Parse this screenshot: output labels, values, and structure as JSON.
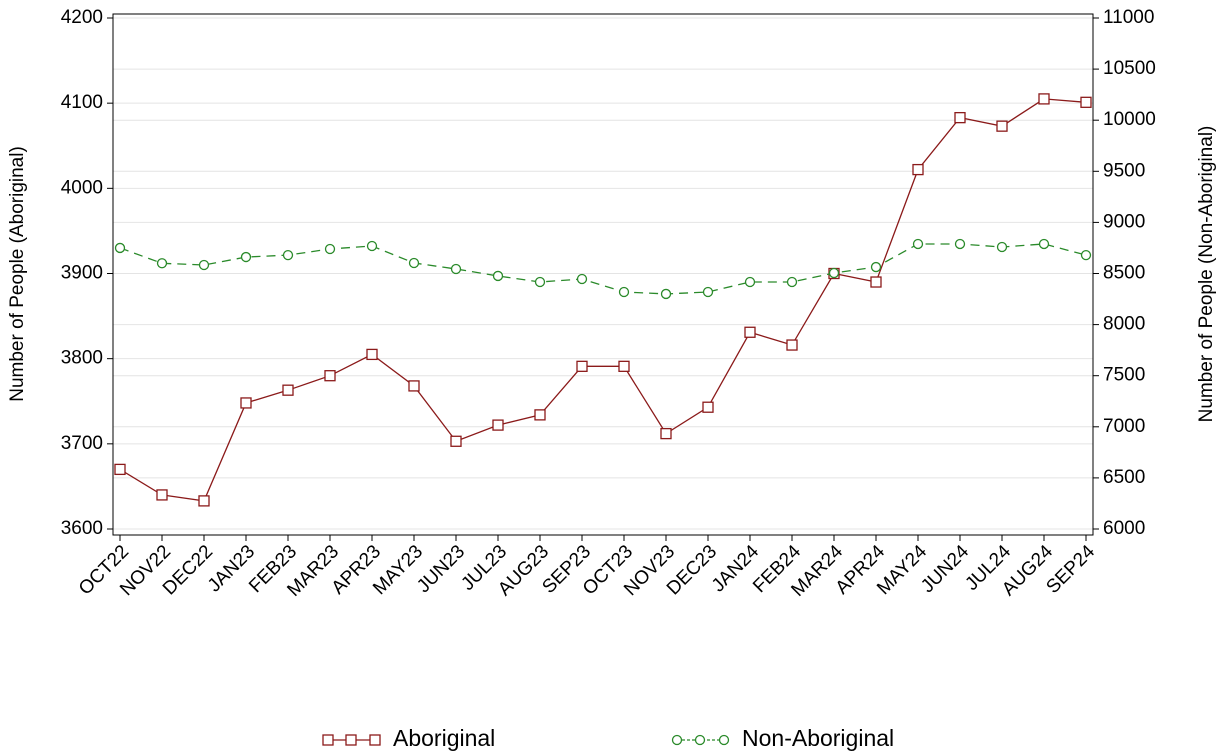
{
  "chart_data": {
    "type": "line",
    "categories": [
      "OCT22",
      "NOV22",
      "DEC22",
      "JAN23",
      "FEB23",
      "MAR23",
      "APR23",
      "MAY23",
      "JUN23",
      "JUL23",
      "AUG23",
      "SEP23",
      "OCT23",
      "NOV23",
      "DEC23",
      "JAN24",
      "FEB24",
      "MAR24",
      "APR24",
      "MAY24",
      "JUN24",
      "JUL24",
      "AUG24",
      "SEP24"
    ],
    "y_label": "Number of People (Aboriginal)",
    "y2_label": "Number of People (Non-Aboriginal)",
    "ylim": [
      3600,
      4200
    ],
    "yticks": [
      3600,
      3700,
      3800,
      3900,
      4000,
      4100,
      4200
    ],
    "y2lim": [
      6000,
      11000
    ],
    "y2ticks": [
      6000,
      6500,
      7000,
      7500,
      8000,
      8500,
      9000,
      9500,
      10000,
      10500,
      11000
    ],
    "grid": true,
    "series": [
      {
        "name": "Aboriginal",
        "color": "#8b1a1a",
        "marker": "square",
        "dashed": false,
        "values": [
          3670,
          3640,
          3633,
          3748,
          3763,
          3780,
          3805,
          3768,
          3703,
          3722,
          3734,
          3791,
          3791,
          3712,
          3743,
          3831,
          3816,
          3900,
          3890,
          4022,
          4083,
          4073,
          4105,
          4101
        ]
      },
      {
        "name": "Non-Aboriginal",
        "color": "#2a8a2a",
        "marker": "circle",
        "dashed": true,
        "axis": "y2",
        "values": [
          8750,
          8600,
          8583,
          8661,
          8680,
          8740,
          8769,
          8603,
          8544,
          8476,
          8417,
          8446,
          8319,
          8300,
          8319,
          8417,
          8417,
          8505,
          8563,
          8789,
          8789,
          8759,
          8789,
          8680
        ]
      }
    ]
  }
}
